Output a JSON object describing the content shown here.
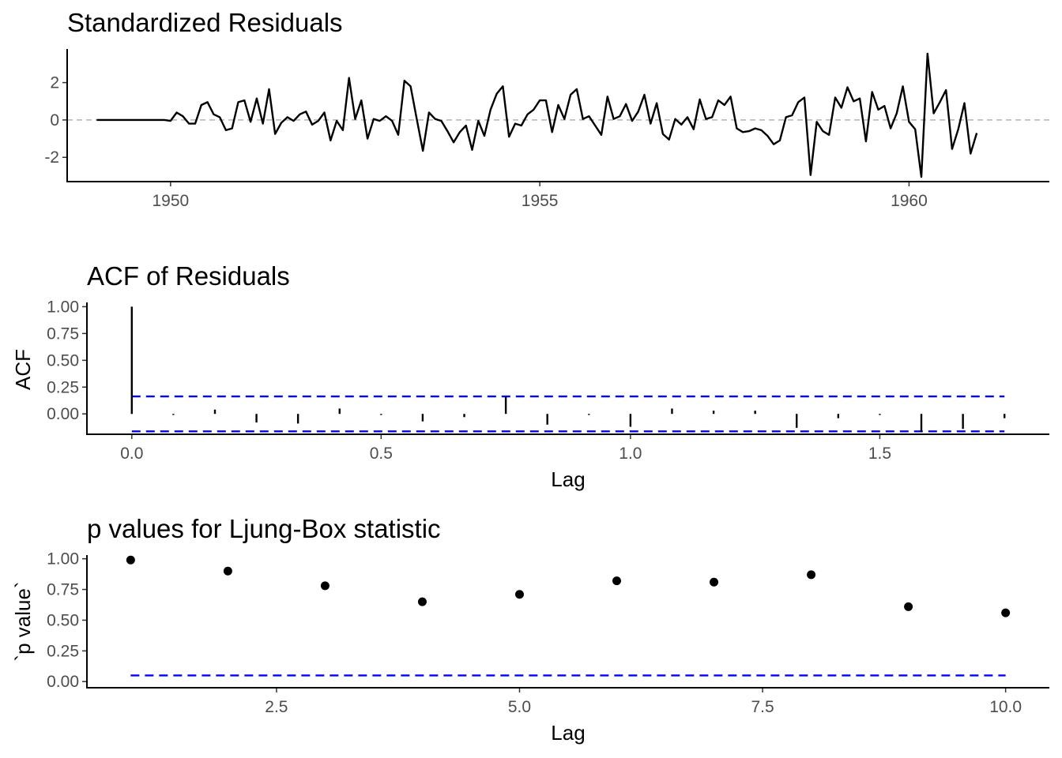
{
  "chart_data": [
    {
      "type": "line",
      "title": "Standardized Residuals",
      "xlabel": "",
      "ylabel": "",
      "xlim": [
        1948.6,
        1961.9
      ],
      "ylim": [
        -3.3,
        3.8
      ],
      "x_ticks": [
        {
          "v": 1950,
          "label": "1950"
        },
        {
          "v": 1955,
          "label": "1955"
        },
        {
          "v": 1960,
          "label": "1960"
        }
      ],
      "y_ticks": [
        {
          "v": 2,
          "label": "2"
        },
        {
          "v": 0,
          "label": "0"
        },
        {
          "v": -2,
          "label": "-2"
        }
      ],
      "reference_line": 0,
      "x_start": 1949.0,
      "x_step": 0.083333,
      "values": [
        0,
        0,
        0,
        0,
        0,
        0,
        0,
        0,
        0,
        0,
        0,
        0,
        -0.05,
        0.4,
        0.2,
        -0.2,
        -0.2,
        0.8,
        0.95,
        0.3,
        0.15,
        -0.55,
        -0.45,
        0.95,
        1.05,
        -0.1,
        1.15,
        -0.2,
        1.65,
        -0.75,
        -0.15,
        0.15,
        -0.05,
        0.3,
        0.45,
        -0.25,
        -0.05,
        0.4,
        -1.1,
        -0.05,
        -0.55,
        2.25,
        0.05,
        1.05,
        -1.0,
        0.05,
        -0.05,
        0.2,
        -0.05,
        -0.8,
        2.1,
        1.8,
        0.05,
        -1.65,
        0.4,
        0.05,
        -0.05,
        -0.6,
        -1.2,
        -0.65,
        -0.3,
        -1.6,
        -0.05,
        -0.85,
        0.55,
        1.4,
        1.8,
        -0.9,
        -0.2,
        -0.3,
        0.3,
        0.55,
        1.05,
        1.05,
        -0.65,
        0.8,
        0.05,
        1.35,
        1.65,
        0.05,
        0.2,
        -0.3,
        -0.8,
        1.25,
        0.05,
        0.2,
        0.85,
        -0.05,
        0.45,
        1.35,
        -0.2,
        0.9,
        -0.75,
        -1.05,
        0.05,
        -0.25,
        0.15,
        -0.5,
        1.1,
        0.05,
        0.15,
        1.05,
        0.8,
        1.25,
        -0.45,
        -0.65,
        -0.6,
        -0.45,
        -0.55,
        -0.85,
        -1.3,
        -1.1,
        0.15,
        0.25,
        0.95,
        1.2,
        -2.95,
        -0.1,
        -0.6,
        -0.8,
        1.2,
        0.65,
        1.75,
        1.0,
        1.15,
        -1.15,
        1.5,
        0.55,
        0.75,
        -0.45,
        0.35,
        1.8,
        -0.1,
        -0.5,
        -3.05,
        3.55,
        0.35,
        0.95,
        1.6,
        -1.55,
        -0.5,
        0.9,
        -1.8,
        -0.7
      ]
    },
    {
      "type": "bar",
      "title": "ACF of Residuals",
      "xlabel": "Lag",
      "ylabel": "ACF",
      "xlim": [
        -0.09,
        1.84
      ],
      "ylim": [
        -0.19,
        1.04
      ],
      "x_ticks": [
        {
          "v": 0,
          "label": "0.0"
        },
        {
          "v": 0.5,
          "label": "0.5"
        },
        {
          "v": 1,
          "label": "1.0"
        },
        {
          "v": 1.5,
          "label": "1.5"
        }
      ],
      "y_ticks": [
        {
          "v": 1,
          "label": "1.00"
        },
        {
          "v": 0.75,
          "label": "0.75"
        },
        {
          "v": 0.5,
          "label": "0.50"
        },
        {
          "v": 0.25,
          "label": "0.25"
        },
        {
          "v": 0,
          "label": "0.00"
        }
      ],
      "confidence_bounds": [
        0.163,
        -0.163
      ],
      "bound_color": "#0000ff",
      "lags": [
        0,
        0.0833,
        0.1667,
        0.25,
        0.3333,
        0.4167,
        0.5,
        0.5833,
        0.6667,
        0.75,
        0.8333,
        0.9167,
        1.0,
        1.0833,
        1.1667,
        1.25,
        1.3333,
        1.4167,
        1.5,
        1.5833,
        1.6667,
        1.75
      ],
      "values": [
        1.0,
        -0.01,
        0.04,
        -0.08,
        -0.09,
        0.05,
        -0.01,
        -0.07,
        -0.03,
        0.16,
        -0.1,
        -0.01,
        -0.12,
        0.05,
        0.03,
        0.03,
        -0.13,
        -0.04,
        -0.01,
        -0.17,
        -0.14,
        -0.04
      ]
    },
    {
      "type": "scatter",
      "title": "p values for Ljung-Box statistic",
      "xlabel": "Lag",
      "ylabel": "`p value`",
      "xlim": [
        0.55,
        10.45
      ],
      "ylim": [
        -0.05,
        1.03
      ],
      "x_ticks": [
        {
          "v": 2.5,
          "label": "2.5"
        },
        {
          "v": 5,
          "label": "5.0"
        },
        {
          "v": 7.5,
          "label": "7.5"
        },
        {
          "v": 10,
          "label": "10.0"
        }
      ],
      "y_ticks": [
        {
          "v": 1,
          "label": "1.00"
        },
        {
          "v": 0.75,
          "label": "0.75"
        },
        {
          "v": 0.5,
          "label": "0.50"
        },
        {
          "v": 0.25,
          "label": "0.25"
        },
        {
          "v": 0,
          "label": "0.00"
        }
      ],
      "significance_line": 0.05,
      "line_color": "#0000ff",
      "x": [
        1,
        2,
        3,
        4,
        5,
        6,
        7,
        8,
        9,
        10
      ],
      "y": [
        0.99,
        0.9,
        0.78,
        0.65,
        0.71,
        0.82,
        0.81,
        0.87,
        0.61,
        0.56
      ]
    }
  ]
}
